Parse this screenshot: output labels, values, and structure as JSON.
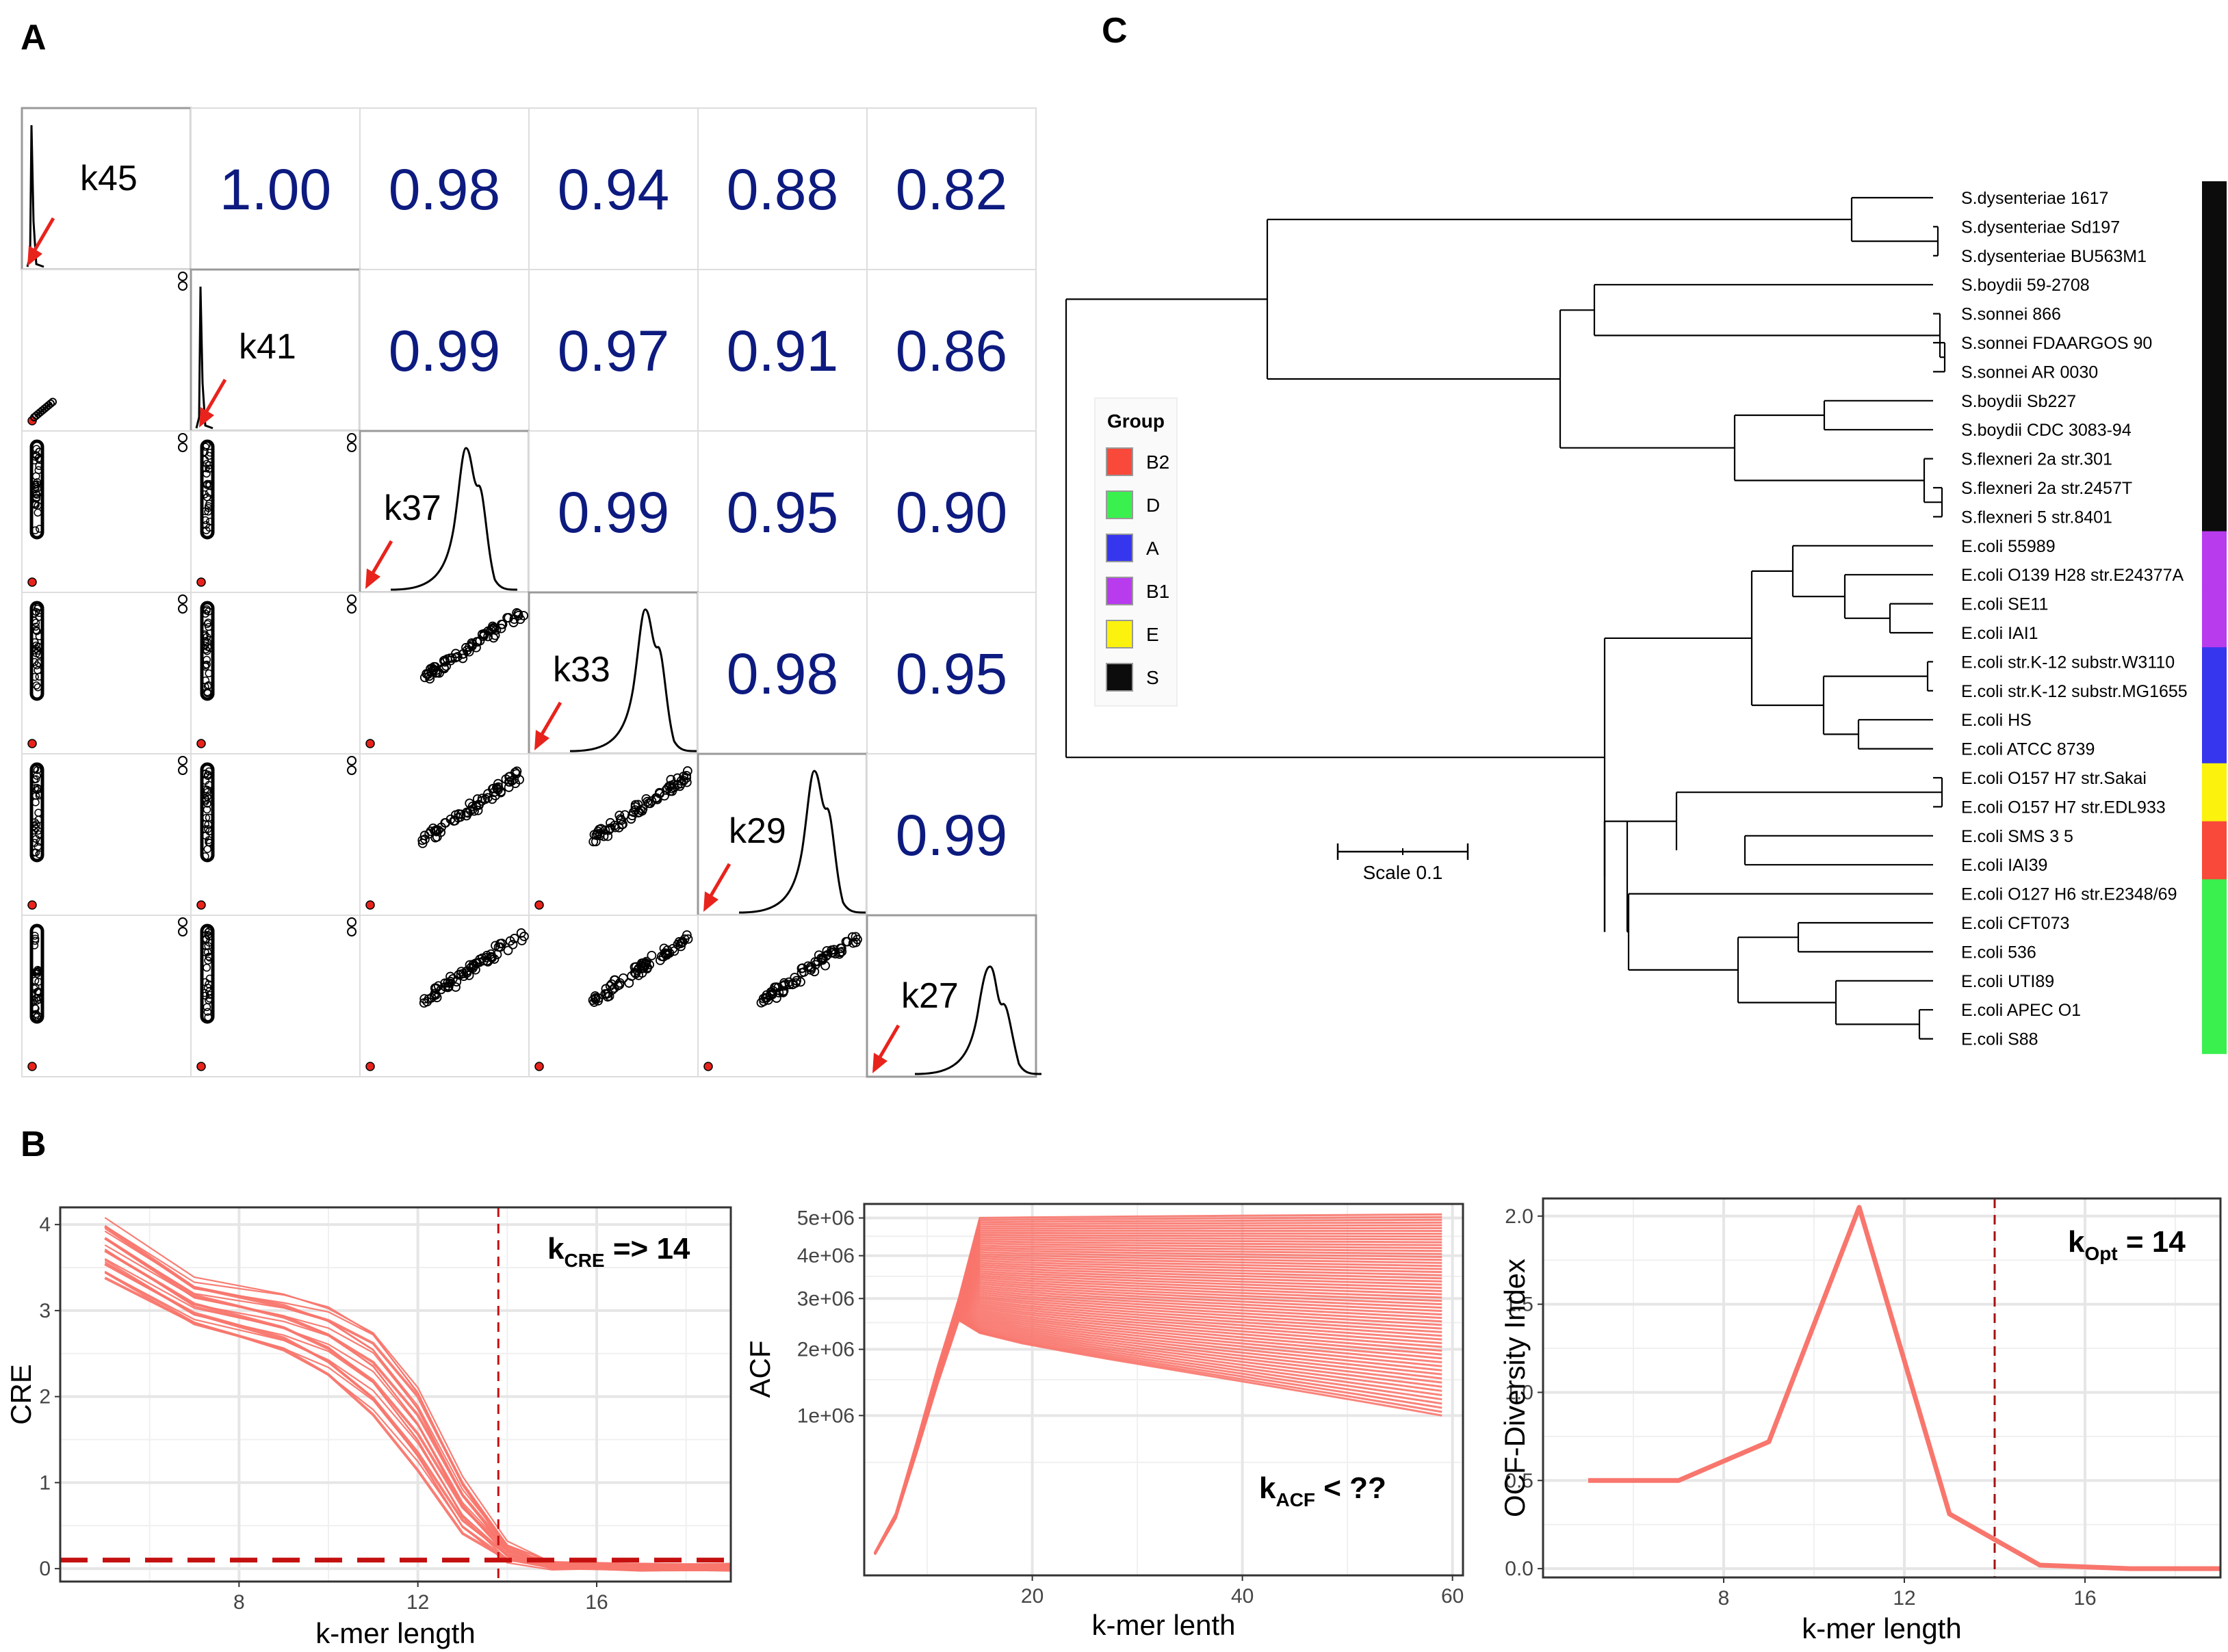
{
  "panels": {
    "a": "A",
    "b": "B",
    "c": "C"
  },
  "matrix": {
    "labels": [
      "k45",
      "k41",
      "k37",
      "k33",
      "k29",
      "k27"
    ],
    "correlations": [
      {
        "row": 0,
        "col": 1,
        "text": "1.00"
      },
      {
        "row": 0,
        "col": 2,
        "text": "0.98"
      },
      {
        "row": 0,
        "col": 3,
        "text": "0.94"
      },
      {
        "row": 0,
        "col": 4,
        "text": "0.88"
      },
      {
        "row": 0,
        "col": 5,
        "text": "0.82"
      },
      {
        "row": 1,
        "col": 2,
        "text": "0.99"
      },
      {
        "row": 1,
        "col": 3,
        "text": "0.97"
      },
      {
        "row": 1,
        "col": 4,
        "text": "0.91"
      },
      {
        "row": 1,
        "col": 5,
        "text": "0.86"
      },
      {
        "row": 2,
        "col": 3,
        "text": "0.99"
      },
      {
        "row": 2,
        "col": 4,
        "text": "0.95"
      },
      {
        "row": 2,
        "col": 5,
        "text": "0.90"
      },
      {
        "row": 3,
        "col": 4,
        "text": "0.98"
      },
      {
        "row": 3,
        "col": 5,
        "text": "0.95"
      },
      {
        "row": 4,
        "col": 5,
        "text": "0.99"
      }
    ],
    "colors": {
      "number": "#0d1b80",
      "arrow": "#e8231c",
      "outlier": "#e8231c"
    }
  },
  "chart_data": [
    {
      "type": "line",
      "title": "",
      "xlabel": "k-mer length",
      "ylabel": "CRE",
      "xlim": [
        4,
        19
      ],
      "ylim": [
        -0.15,
        4.2
      ],
      "x_ticks": [
        8,
        12,
        16
      ],
      "y_ticks": [
        0,
        1,
        2,
        3,
        4
      ],
      "x": [
        5,
        7,
        9,
        10,
        11,
        12,
        13,
        14,
        15,
        17,
        19
      ],
      "series_band": {
        "upper": [
          4.05,
          3.35,
          3.18,
          3.05,
          2.78,
          2.12,
          1.05,
          0.28,
          0.05,
          0.02,
          0.02
        ],
        "lower": [
          3.38,
          2.82,
          2.52,
          2.25,
          1.82,
          1.18,
          0.42,
          0.08,
          0.02,
          0.02,
          0.02
        ],
        "count": 20
      },
      "threshold_y": 0.1,
      "vline_x": 13.8,
      "annotation": {
        "main": "k",
        "sub": "CRE",
        "rest": " => 14"
      },
      "color": "#f8766d"
    },
    {
      "type": "line",
      "title": "",
      "xlabel": "k-mer lenth",
      "ylabel": "ACF",
      "xlim": [
        4,
        61
      ],
      "yscale": "sqrt",
      "ylim": [
        0,
        5400000
      ],
      "x_ticks": [
        20,
        40,
        60
      ],
      "y_ticks": [
        "1e+06",
        "2e+06",
        "3e+06",
        "4e+06",
        "5e+06"
      ],
      "y_tick_values": [
        1000000,
        2000000,
        3000000,
        4000000,
        5000000
      ],
      "x_rise": [
        5,
        7,
        9,
        11,
        13
      ],
      "y_rise": [
        20000,
        150000,
        700000,
        1700000,
        3000000
      ],
      "peak_x": 15,
      "end_x": 59,
      "series_band": {
        "peak_top": 5000000,
        "peak_bottom": 2300000,
        "end_top": 5100000,
        "end_bottom": 1000000,
        "count": 60
      },
      "annotation": {
        "main": "k",
        "sub": "ACF",
        "rest": " < ??"
      },
      "color": "#f8766d"
    },
    {
      "type": "line",
      "title": "",
      "xlabel": "k-mer length",
      "ylabel": "OCF-Diversity Index",
      "xlim": [
        4,
        19
      ],
      "ylim": [
        -0.05,
        2.1
      ],
      "x_ticks": [
        8,
        12,
        16
      ],
      "y_ticks": [
        "0.0",
        "0.5",
        "1.0",
        "1.5",
        "2.0"
      ],
      "x": [
        5,
        7,
        9,
        11,
        13,
        15,
        17,
        19
      ],
      "y": [
        0.5,
        0.5,
        0.72,
        2.05,
        0.31,
        0.02,
        0.0,
        0.0
      ],
      "vline_x": 14,
      "annotation": {
        "main": "k",
        "sub": "Opt",
        "rest": " = 14"
      },
      "color": "#f8766d"
    }
  ],
  "tree": {
    "taxa": [
      "S.dysenteriae 1617",
      "S.dysenteriae Sd197",
      "S.dysenteriae BU563M1",
      "S.boydii 59-2708",
      "S.sonnei 866",
      "S.sonnei FDAARGOS 90",
      "S.sonnei AR 0030",
      "S.boydii Sb227",
      "S.boydii CDC 3083-94",
      "S.flexneri 2a str.301",
      "S.flexneri 2a str.2457T",
      "S.flexneri 5 str.8401",
      "E.coli 55989",
      "E.coli O139 H28 str.E24377A",
      "E.coli SE11",
      "E.coli IAI1",
      "E.coli str.K-12 substr.W3110",
      "E.coli str.K-12 substr.MG1655",
      "E.coli HS",
      "E.coli ATCC 8739",
      "E.coli O157 H7 str.Sakai",
      "E.coli O157 H7 str.EDL933",
      "E.coli SMS 3 5",
      "E.coli IAI39",
      "E.coli O127 H6 str.E2348/69",
      "E.coli CFT073",
      "E.coli 536",
      "E.coli UTI89",
      "E.coli APEC O1",
      "E.coli S88"
    ],
    "group_strip": [
      "S",
      "S",
      "S",
      "S",
      "S",
      "S",
      "S",
      "S",
      "S",
      "S",
      "S",
      "S",
      "B1",
      "B1",
      "B1",
      "B1",
      "A",
      "A",
      "A",
      "A",
      "E",
      "E",
      "B2",
      "B2",
      "D",
      "D",
      "D",
      "D",
      "D",
      "D"
    ],
    "legend": {
      "title": "Group",
      "items": [
        {
          "label": "B2",
          "color": "#f8493a"
        },
        {
          "label": "D",
          "color": "#39f04f"
        },
        {
          "label": "A",
          "color": "#3636ee"
        },
        {
          "label": "B1",
          "color": "#b83bee"
        },
        {
          "label": "E",
          "color": "#fbf20e"
        },
        {
          "label": "S",
          "color": "#0c0c0c"
        }
      ]
    },
    "scale_label": "Scale 0.1"
  }
}
